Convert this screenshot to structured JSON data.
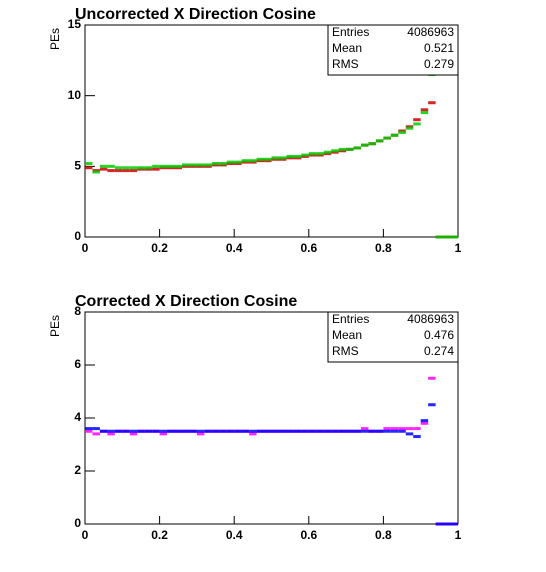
{
  "chart_data": [
    {
      "type": "histogram",
      "title": "Uncorrected X Direction Cosine",
      "y_label": "PEs",
      "stats": [
        {
          "label": "Entries",
          "value": 4086963
        },
        {
          "label": "Mean",
          "value": 0.521
        },
        {
          "label": "RMS",
          "value": 0.279
        }
      ],
      "x": [
        0.01,
        0.03,
        0.05,
        0.07,
        0.09,
        0.11,
        0.13,
        0.15,
        0.17,
        0.19,
        0.21,
        0.23,
        0.25,
        0.27,
        0.29,
        0.31,
        0.33,
        0.35,
        0.37,
        0.39,
        0.41,
        0.43,
        0.45,
        0.47,
        0.49,
        0.51,
        0.53,
        0.55,
        0.57,
        0.59,
        0.61,
        0.63,
        0.65,
        0.67,
        0.69,
        0.71,
        0.73,
        0.75,
        0.77,
        0.79,
        0.81,
        0.83,
        0.85,
        0.87,
        0.89,
        0.91,
        0.93,
        0.95,
        0.97,
        0.99
      ],
      "series": [
        {
          "color": "#cc0000",
          "values": [
            4.9,
            4.7,
            4.8,
            4.7,
            4.7,
            4.7,
            4.7,
            4.8,
            4.8,
            4.8,
            4.9,
            4.9,
            4.9,
            5.0,
            5.0,
            5.0,
            5.0,
            5.1,
            5.1,
            5.2,
            5.2,
            5.3,
            5.3,
            5.4,
            5.4,
            5.5,
            5.5,
            5.6,
            5.6,
            5.7,
            5.8,
            5.8,
            5.9,
            6.0,
            6.1,
            6.2,
            6.3,
            6.5,
            6.6,
            6.8,
            7.0,
            7.2,
            7.5,
            7.8,
            8.3,
            9.0,
            9.5,
            0,
            0,
            0
          ]
        },
        {
          "color": "#00cc00",
          "values": [
            5.2,
            4.6,
            5.0,
            5.0,
            4.9,
            4.9,
            4.9,
            4.9,
            4.9,
            5.0,
            5.0,
            5.0,
            5.0,
            5.1,
            5.1,
            5.1,
            5.1,
            5.2,
            5.2,
            5.3,
            5.3,
            5.4,
            5.4,
            5.5,
            5.5,
            5.6,
            5.6,
            5.7,
            5.7,
            5.8,
            5.9,
            5.9,
            6.0,
            6.1,
            6.2,
            6.2,
            6.3,
            6.5,
            6.6,
            6.8,
            7.0,
            7.2,
            7.4,
            7.7,
            8.0,
            8.8,
            11.5,
            0,
            0,
            0
          ]
        }
      ],
      "xlim": [
        0,
        1
      ],
      "xticks": [
        0,
        0.2,
        0.4,
        0.6,
        0.8,
        1
      ],
      "ylim": [
        0,
        15
      ],
      "yticks": [
        0,
        5,
        10,
        15
      ]
    },
    {
      "type": "histogram",
      "title": "Corrected X Direction Cosine",
      "y_label": "PEs",
      "stats": [
        {
          "label": "Entries",
          "value": 4086963
        },
        {
          "label": "Mean",
          "value": 0.476
        },
        {
          "label": "RMS",
          "value": 0.274
        }
      ],
      "x": [
        0.01,
        0.03,
        0.05,
        0.07,
        0.09,
        0.11,
        0.13,
        0.15,
        0.17,
        0.19,
        0.21,
        0.23,
        0.25,
        0.27,
        0.29,
        0.31,
        0.33,
        0.35,
        0.37,
        0.39,
        0.41,
        0.43,
        0.45,
        0.47,
        0.49,
        0.51,
        0.53,
        0.55,
        0.57,
        0.59,
        0.61,
        0.63,
        0.65,
        0.67,
        0.69,
        0.71,
        0.73,
        0.75,
        0.77,
        0.79,
        0.81,
        0.83,
        0.85,
        0.87,
        0.89,
        0.91,
        0.93,
        0.95,
        0.97,
        0.99
      ],
      "series": [
        {
          "color": "#ff00ff",
          "values": [
            3.5,
            3.4,
            3.5,
            3.4,
            3.5,
            3.5,
            3.4,
            3.5,
            3.5,
            3.5,
            3.4,
            3.5,
            3.5,
            3.5,
            3.5,
            3.4,
            3.5,
            3.5,
            3.5,
            3.5,
            3.5,
            3.5,
            3.4,
            3.5,
            3.5,
            3.5,
            3.5,
            3.5,
            3.5,
            3.5,
            3.5,
            3.5,
            3.5,
            3.5,
            3.5,
            3.5,
            3.5,
            3.6,
            3.5,
            3.5,
            3.6,
            3.6,
            3.6,
            3.6,
            3.6,
            3.8,
            5.5,
            0,
            0,
            0
          ]
        },
        {
          "color": "#0000ff",
          "values": [
            3.6,
            3.6,
            3.5,
            3.5,
            3.5,
            3.5,
            3.5,
            3.5,
            3.5,
            3.5,
            3.5,
            3.5,
            3.5,
            3.5,
            3.5,
            3.5,
            3.5,
            3.5,
            3.5,
            3.5,
            3.5,
            3.5,
            3.5,
            3.5,
            3.5,
            3.5,
            3.5,
            3.5,
            3.5,
            3.5,
            3.5,
            3.5,
            3.5,
            3.5,
            3.5,
            3.5,
            3.5,
            3.5,
            3.5,
            3.5,
            3.5,
            3.5,
            3.5,
            3.4,
            3.3,
            3.9,
            4.5,
            0,
            0,
            0
          ]
        }
      ],
      "xlim": [
        0,
        1
      ],
      "xticks": [
        0,
        0.2,
        0.4,
        0.6,
        0.8,
        1
      ],
      "ylim": [
        0,
        8
      ],
      "yticks": [
        0,
        2,
        4,
        6,
        8
      ]
    }
  ]
}
